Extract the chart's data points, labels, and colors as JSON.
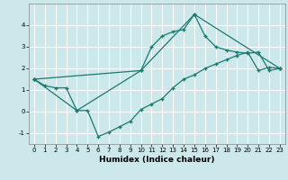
{
  "xlabel": "Humidex (Indice chaleur)",
  "bg_color": "#cde8eb",
  "grid_color": "#ffffff",
  "line_color": "#1a7a6e",
  "xlim": [
    -0.5,
    23.5
  ],
  "ylim": [
    -1.5,
    5.0
  ],
  "yticks": [
    -1,
    0,
    1,
    2,
    3,
    4
  ],
  "xticks": [
    0,
    1,
    2,
    3,
    4,
    5,
    6,
    7,
    8,
    9,
    10,
    11,
    12,
    13,
    14,
    15,
    16,
    17,
    18,
    19,
    20,
    21,
    22,
    23
  ],
  "series1_x": [
    0,
    1,
    2,
    3,
    4,
    5,
    6,
    7,
    8,
    9,
    10,
    11,
    12,
    13,
    14,
    15,
    16,
    17,
    18,
    19,
    20,
    21,
    22,
    23
  ],
  "series1_y": [
    1.5,
    1.2,
    1.1,
    1.1,
    0.05,
    0.05,
    -1.15,
    -0.95,
    -0.7,
    -0.45,
    0.1,
    0.35,
    0.6,
    1.1,
    1.5,
    1.7,
    2.0,
    2.2,
    2.4,
    2.6,
    2.75,
    1.9,
    2.05,
    2.0
  ],
  "series2_x": [
    0,
    10,
    11,
    12,
    13,
    14,
    15,
    16,
    17,
    18,
    19,
    20,
    21,
    22,
    23
  ],
  "series2_y": [
    1.5,
    1.9,
    3.0,
    3.5,
    3.7,
    3.8,
    4.5,
    3.5,
    3.0,
    2.85,
    2.75,
    2.7,
    2.75,
    1.9,
    2.0
  ],
  "series3_x": [
    0,
    4,
    10,
    15,
    23
  ],
  "series3_y": [
    1.5,
    0.05,
    1.9,
    4.5,
    2.0
  ],
  "xlabel_fontsize": 6.5,
  "tick_fontsize": 5.0
}
